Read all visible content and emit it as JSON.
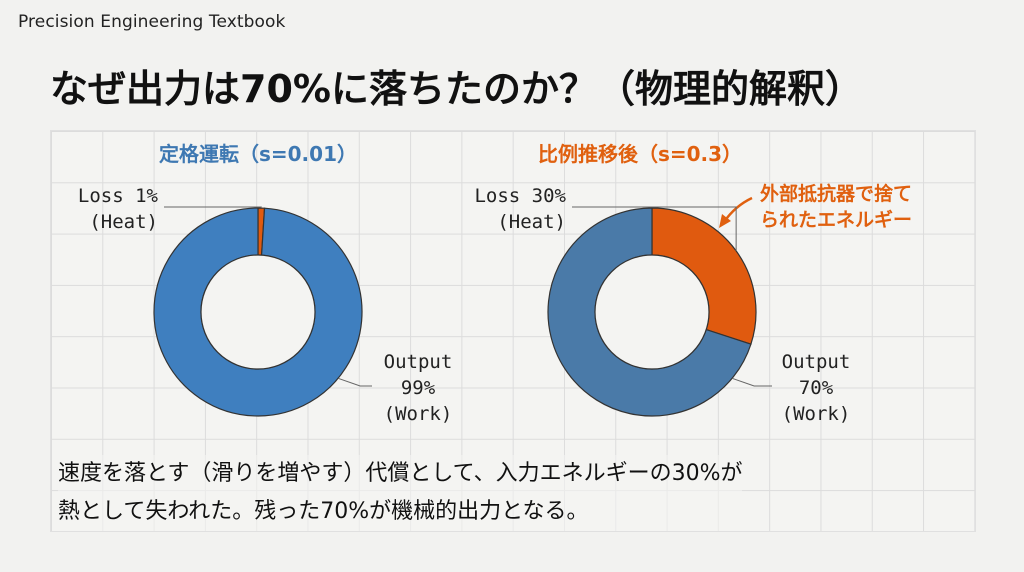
{
  "header": {
    "title": "Precision Engineering Textbook"
  },
  "slide": {
    "title": "なぜ出力は70%に落ちたのか？（物理的解釈）",
    "caption_line1": "速度を落とす（滑りを増やす）代償として、入力エネルギーの30%が",
    "caption_line2": "熱として失われた。残った70%が機械的出力となる。"
  },
  "colors": {
    "blue": "#3f7fbf",
    "blue_dark": "#4a7aa8",
    "orange": "#e05a0f",
    "label_blue": "#3e78b2",
    "label_orange": "#e0600f"
  },
  "chart_data": [
    {
      "type": "pie",
      "donut": true,
      "title": "定格運転（s=0.01）",
      "slices": [
        {
          "name": "Output",
          "value": 99,
          "label_lines": [
            "Output",
            "99%",
            "(Work)"
          ]
        },
        {
          "name": "Loss",
          "value": 1,
          "label_lines": [
            "Loss 1%",
            "(Heat)"
          ]
        }
      ]
    },
    {
      "type": "pie",
      "donut": true,
      "title": "比例推移後（s=0.3）",
      "slices": [
        {
          "name": "Output",
          "value": 70,
          "label_lines": [
            "Output",
            "70%",
            "(Work)"
          ]
        },
        {
          "name": "Loss",
          "value": 30,
          "label_lines": [
            "Loss 30%",
            "(Heat)"
          ]
        }
      ],
      "annotation_lines": [
        "外部抵抗器で捨て",
        "られたエネルギー"
      ]
    }
  ]
}
